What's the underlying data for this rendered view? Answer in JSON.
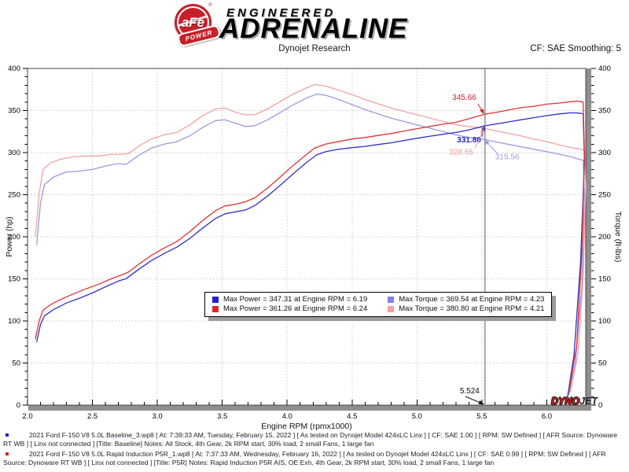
{
  "header": {
    "logo": {
      "afe_text": "aFe",
      "power_text": "POWER",
      "engineered": "ENGINEERED",
      "adrenaline": "ADRENALINE"
    },
    "title": "Dynojet Research",
    "cf_label": "CF: SAE Smoothing: 5"
  },
  "chart_data": {
    "type": "line",
    "xlabel": "Engine RPM (rpmx1000)",
    "ylabel_left": "Power (hp)",
    "ylabel_right": "Torque (ft-lbs)",
    "xlim": [
      2.0,
      6.3
    ],
    "ylim": [
      0,
      400
    ],
    "x_major_ticks": [
      2.0,
      2.5,
      3.0,
      3.5,
      4.0,
      4.5,
      5.0,
      5.5,
      6.0
    ],
    "x_minor_step": 0.1,
    "y_major_ticks": [
      0,
      50,
      100,
      150,
      200,
      250,
      300,
      350,
      400
    ],
    "y_minor_step": 10,
    "grid": "dotted",
    "cursor": {
      "x": 5.524,
      "label": "5.524",
      "label_color": "#111111"
    },
    "annotations": [
      {
        "text": "345.66",
        "color": "#d22027",
        "bold": false,
        "value": 345.66,
        "anchor": "end",
        "label_offset": [
          -11,
          -18
        ],
        "arrow_from": [
          -9,
          -13
        ]
      },
      {
        "text": "331.88",
        "color": "#2626b8",
        "bold": true,
        "value": 331.88,
        "anchor": "end",
        "label_offset": [
          -5,
          21
        ],
        "arrow_from": [
          -4,
          14
        ]
      },
      {
        "text": "328.65",
        "color": "#ee9898",
        "bold": false,
        "value": 328.65,
        "anchor": "end",
        "label_offset": [
          -15,
          33
        ],
        "arrow_from": [
          -13,
          25
        ]
      },
      {
        "text": "315.56",
        "color": "#9a9ae6",
        "bold": false,
        "value": 315.56,
        "anchor": "start",
        "label_offset": [
          13,
          25
        ],
        "arrow_from": [
          16,
          18
        ]
      }
    ],
    "series": [
      {
        "name": "baseline_torque",
        "label": "Baseline Torque",
        "color": "#9a9ae2",
        "points": [
          [
            2.07,
            190
          ],
          [
            2.1,
            240
          ],
          [
            2.13,
            262
          ],
          [
            2.2,
            271
          ],
          [
            2.3,
            277
          ],
          [
            2.4,
            278
          ],
          [
            2.5,
            280
          ],
          [
            2.6,
            284
          ],
          [
            2.7,
            287
          ],
          [
            2.76,
            286
          ],
          [
            2.85,
            296
          ],
          [
            2.95,
            305
          ],
          [
            3.05,
            310
          ],
          [
            3.15,
            313
          ],
          [
            3.25,
            320
          ],
          [
            3.35,
            330
          ],
          [
            3.45,
            338
          ],
          [
            3.52,
            339
          ],
          [
            3.6,
            335
          ],
          [
            3.68,
            331
          ],
          [
            3.75,
            332
          ],
          [
            3.85,
            339
          ],
          [
            3.95,
            348
          ],
          [
            4.05,
            357
          ],
          [
            4.15,
            365
          ],
          [
            4.23,
            369.54
          ],
          [
            4.3,
            368
          ],
          [
            4.4,
            363
          ],
          [
            4.5,
            357
          ],
          [
            4.6,
            351
          ],
          [
            4.7,
            346
          ],
          [
            4.8,
            341
          ],
          [
            4.9,
            337
          ],
          [
            5.0,
            333
          ],
          [
            5.1,
            329
          ],
          [
            5.2,
            325
          ],
          [
            5.3,
            321
          ],
          [
            5.4,
            318
          ],
          [
            5.524,
            315.56
          ],
          [
            5.6,
            313
          ],
          [
            5.7,
            310
          ],
          [
            5.8,
            307
          ],
          [
            5.9,
            304
          ],
          [
            6.0,
            301
          ],
          [
            6.1,
            298
          ],
          [
            6.19,
            295
          ],
          [
            6.25,
            292
          ],
          [
            6.28,
            291
          ],
          [
            6.29,
            250
          ],
          [
            6.27,
            140
          ],
          [
            6.22,
            50
          ],
          [
            6.17,
            12
          ]
        ]
      },
      {
        "name": "p5r_torque",
        "label": "P5R Torque",
        "color": "#f2a3a3",
        "points": [
          [
            2.06,
            200
          ],
          [
            2.09,
            252
          ],
          [
            2.12,
            280
          ],
          [
            2.18,
            288
          ],
          [
            2.25,
            292
          ],
          [
            2.35,
            295
          ],
          [
            2.45,
            296
          ],
          [
            2.55,
            296
          ],
          [
            2.65,
            298
          ],
          [
            2.72,
            298
          ],
          [
            2.78,
            299
          ],
          [
            2.85,
            307
          ],
          [
            2.95,
            316
          ],
          [
            3.05,
            321
          ],
          [
            3.15,
            324
          ],
          [
            3.25,
            333
          ],
          [
            3.35,
            344
          ],
          [
            3.45,
            352
          ],
          [
            3.52,
            353
          ],
          [
            3.6,
            348
          ],
          [
            3.68,
            345
          ],
          [
            3.75,
            345
          ],
          [
            3.85,
            352
          ],
          [
            3.95,
            361
          ],
          [
            4.05,
            370
          ],
          [
            4.15,
            377
          ],
          [
            4.21,
            380.8
          ],
          [
            4.3,
            379
          ],
          [
            4.4,
            374
          ],
          [
            4.5,
            369
          ],
          [
            4.6,
            363
          ],
          [
            4.7,
            358
          ],
          [
            4.8,
            353
          ],
          [
            4.9,
            349
          ],
          [
            5.0,
            345
          ],
          [
            5.1,
            341
          ],
          [
            5.2,
            337
          ],
          [
            5.3,
            333
          ],
          [
            5.4,
            331
          ],
          [
            5.524,
            328.65
          ],
          [
            5.6,
            326
          ],
          [
            5.7,
            323
          ],
          [
            5.8,
            320
          ],
          [
            5.9,
            316
          ],
          [
            6.0,
            313
          ],
          [
            6.1,
            309
          ],
          [
            6.19,
            306
          ],
          [
            6.26,
            304
          ],
          [
            6.29,
            303
          ],
          [
            6.3,
            260
          ],
          [
            6.28,
            150
          ],
          [
            6.24,
            60
          ],
          [
            6.18,
            15
          ]
        ]
      },
      {
        "name": "baseline_power",
        "label": "Baseline Power",
        "color": "#3030c8",
        "points": [
          [
            2.07,
            74.9
          ],
          [
            2.1,
            96
          ],
          [
            2.13,
            106.2
          ],
          [
            2.2,
            113.5
          ],
          [
            2.3,
            121.3
          ],
          [
            2.4,
            127
          ],
          [
            2.5,
            133.3
          ],
          [
            2.6,
            140.6
          ],
          [
            2.7,
            147.5
          ],
          [
            2.76,
            150.3
          ],
          [
            2.85,
            160.6
          ],
          [
            2.95,
            171.3
          ],
          [
            3.05,
            180
          ],
          [
            3.15,
            187.7
          ],
          [
            3.25,
            198
          ],
          [
            3.35,
            210.5
          ],
          [
            3.45,
            222
          ],
          [
            3.52,
            227.2
          ],
          [
            3.6,
            229.6
          ],
          [
            3.68,
            231.9
          ],
          [
            3.75,
            237.1
          ],
          [
            3.85,
            248.5
          ],
          [
            3.95,
            261.7
          ],
          [
            4.05,
            275.3
          ],
          [
            4.15,
            288.4
          ],
          [
            4.23,
            297.6
          ],
          [
            4.3,
            301.3
          ],
          [
            4.4,
            304.1
          ],
          [
            4.5,
            305.9
          ],
          [
            4.6,
            307.4
          ],
          [
            4.7,
            309.6
          ],
          [
            4.8,
            311.6
          ],
          [
            4.9,
            314.4
          ],
          [
            5.0,
            317
          ],
          [
            5.1,
            319.5
          ],
          [
            5.2,
            321.8
          ],
          [
            5.3,
            323.9
          ],
          [
            5.4,
            327
          ],
          [
            5.524,
            331.88
          ],
          [
            5.6,
            333.7
          ],
          [
            5.7,
            336.4
          ],
          [
            5.8,
            339
          ],
          [
            5.9,
            341.5
          ],
          [
            6.0,
            343.9
          ],
          [
            6.1,
            346.1
          ],
          [
            6.19,
            347.31
          ],
          [
            6.25,
            347
          ],
          [
            6.28,
            346
          ],
          [
            6.29,
            290
          ],
          [
            6.26,
            170
          ],
          [
            6.21,
            60
          ],
          [
            6.16,
            10
          ]
        ]
      },
      {
        "name": "p5r_power",
        "label": "P5R Power",
        "color": "#e03236",
        "points": [
          [
            2.06,
            78.4
          ],
          [
            2.09,
            100.3
          ],
          [
            2.12,
            113
          ],
          [
            2.18,
            119.5
          ],
          [
            2.25,
            125.1
          ],
          [
            2.35,
            132
          ],
          [
            2.45,
            138.1
          ],
          [
            2.55,
            143.7
          ],
          [
            2.65,
            150.4
          ],
          [
            2.72,
            154.3
          ],
          [
            2.78,
            158.3
          ],
          [
            2.85,
            166.6
          ],
          [
            2.95,
            177.5
          ],
          [
            3.05,
            186.4
          ],
          [
            3.15,
            194.3
          ],
          [
            3.25,
            206.1
          ],
          [
            3.35,
            219.4
          ],
          [
            3.45,
            231.2
          ],
          [
            3.52,
            236.6
          ],
          [
            3.6,
            238.5
          ],
          [
            3.68,
            241.7
          ],
          [
            3.75,
            246.3
          ],
          [
            3.85,
            258
          ],
          [
            3.95,
            271.5
          ],
          [
            4.05,
            285.3
          ],
          [
            4.15,
            297.9
          ],
          [
            4.21,
            305.2
          ],
          [
            4.3,
            310.3
          ],
          [
            4.4,
            313.3
          ],
          [
            4.5,
            316.2
          ],
          [
            4.6,
            317.9
          ],
          [
            4.7,
            320.4
          ],
          [
            4.8,
            322.6
          ],
          [
            4.9,
            325.6
          ],
          [
            5.0,
            328.4
          ],
          [
            5.1,
            331.1
          ],
          [
            5.2,
            333.7
          ],
          [
            5.3,
            336
          ],
          [
            5.4,
            340.3
          ],
          [
            5.524,
            345.66
          ],
          [
            5.6,
            347.6
          ],
          [
            5.7,
            350.5
          ],
          [
            5.8,
            353.4
          ],
          [
            5.9,
            355
          ],
          [
            6.0,
            357.6
          ],
          [
            6.1,
            358.9
          ],
          [
            6.19,
            360.6
          ],
          [
            6.24,
            361.26
          ],
          [
            6.28,
            360
          ],
          [
            6.29,
            300
          ],
          [
            6.27,
            180
          ],
          [
            6.23,
            70
          ],
          [
            6.17,
            15
          ]
        ]
      }
    ],
    "legend": {
      "position": "center-lower",
      "items": [
        {
          "swatch": "#2222cc",
          "label": "Max Power = 347.31 at Engine RPM = 6.19"
        },
        {
          "swatch": "#8282e8",
          "label": "Max Torque = 369.54 at Engine RPM = 4.23"
        },
        {
          "swatch": "#e02428",
          "label": "Max Power = 361.26 at Engine RPM = 6.24"
        },
        {
          "swatch": "#ff9c9c",
          "label": "Max Torque = 380.80 at Engine RPM = 4.21"
        }
      ]
    },
    "watermark": {
      "dyno": "DYNO",
      "jet": "JET"
    }
  },
  "footer": {
    "entries": [
      {
        "bullet_color": "#2222cc",
        "text": "2021 Ford F-150 V8 5.0L Baseline_3.wp8 [ At: 7:39:33 AM, Tuesday, February 15, 2022 ] [ As tested on Dynojet Model 424xLC Linx ] [ CF: SAE 1.00 ] [ RPM: SW Defined ] [ AFR Source: Dynoware RT WB ] [ Linx not connected ] [Title: Baseline]  Notes: All Stock, 4th Gear, 2k RPM start, 30% load, 2 small Fans, 1 large fan"
      },
      {
        "bullet_color": "#d22027",
        "text": "2021 Ford F-150 V8 5.0L Rapid Induction P5R_1.wp8 [ At: 7:37:33 AM, Wednesday, February 16, 2022 ] [ As tested on Dynojet Model 424xLC Linx ] [ CF: SAE 0.99 ] [ RPM: SW Defined ] [ AFR Source: Dynoware RT WB ] [ Linx not connected ] [Title: P5R]  Notes: Rapid Induction P5R AIS, OE Exh, 4th Gear, 2k RPM start, 30% load, 2 small Fans, 1 large fan"
      }
    ]
  }
}
